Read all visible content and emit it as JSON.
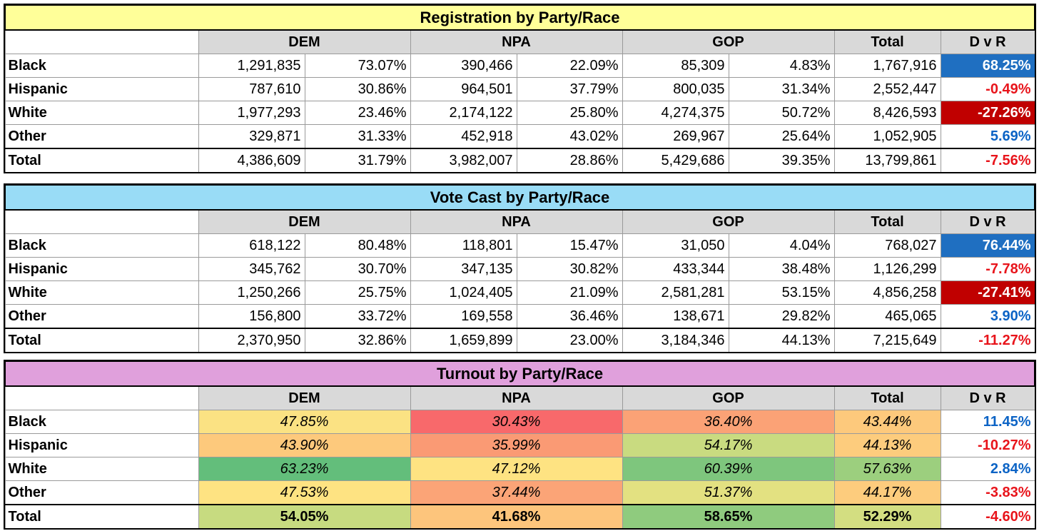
{
  "colors": {
    "reg_title_bg": "#ffff99",
    "vote_title_bg": "#99dcf6",
    "turn_title_bg": "#e0a0dc",
    "header_bg": "#d9d9d9",
    "positive_text": "#0b63c5",
    "negative_text": "#e8141b",
    "positive_fill": "#1f6fc1",
    "negative_fill": "#c00000"
  },
  "registration": {
    "title": "Registration by Party/Race",
    "headers": [
      "DEM",
      "NPA",
      "GOP",
      "Total",
      "D v R"
    ],
    "rows": [
      {
        "label": "Black",
        "dem": "1,291,835",
        "dem_pct": "73.07%",
        "npa": "390,466",
        "npa_pct": "22.09%",
        "gop": "85,309",
        "gop_pct": "4.83%",
        "total": "1,767,916",
        "dvr": "68.25%"
      },
      {
        "label": "Hispanic",
        "dem": "787,610",
        "dem_pct": "30.86%",
        "npa": "964,501",
        "npa_pct": "37.79%",
        "gop": "800,035",
        "gop_pct": "31.34%",
        "total": "2,552,447",
        "dvr": "-0.49%"
      },
      {
        "label": "White",
        "dem": "1,977,293",
        "dem_pct": "23.46%",
        "npa": "2,174,122",
        "npa_pct": "25.80%",
        "gop": "4,274,375",
        "gop_pct": "50.72%",
        "total": "8,426,593",
        "dvr": "-27.26%"
      },
      {
        "label": "Other",
        "dem": "329,871",
        "dem_pct": "31.33%",
        "npa": "452,918",
        "npa_pct": "43.02%",
        "gop": "269,967",
        "gop_pct": "25.64%",
        "total": "1,052,905",
        "dvr": "5.69%"
      },
      {
        "label": "Total",
        "dem": "4,386,609",
        "dem_pct": "31.79%",
        "npa": "3,982,007",
        "npa_pct": "28.86%",
        "gop": "5,429,686",
        "gop_pct": "39.35%",
        "total": "13,799,861",
        "dvr": "-7.56%"
      }
    ]
  },
  "vote_cast": {
    "title": "Vote Cast by Party/Race",
    "headers": [
      "DEM",
      "NPA",
      "GOP",
      "Total",
      "D v R"
    ],
    "rows": [
      {
        "label": "Black",
        "dem": "618,122",
        "dem_pct": "80.48%",
        "npa": "118,801",
        "npa_pct": "15.47%",
        "gop": "31,050",
        "gop_pct": "4.04%",
        "total": "768,027",
        "dvr": "76.44%"
      },
      {
        "label": "Hispanic",
        "dem": "345,762",
        "dem_pct": "30.70%",
        "npa": "347,135",
        "npa_pct": "30.82%",
        "gop": "433,344",
        "gop_pct": "38.48%",
        "total": "1,126,299",
        "dvr": "-7.78%"
      },
      {
        "label": "White",
        "dem": "1,250,266",
        "dem_pct": "25.75%",
        "npa": "1,024,405",
        "npa_pct": "21.09%",
        "gop": "2,581,281",
        "gop_pct": "53.15%",
        "total": "4,856,258",
        "dvr": "-27.41%"
      },
      {
        "label": "Other",
        "dem": "156,800",
        "dem_pct": "33.72%",
        "npa": "169,558",
        "npa_pct": "36.46%",
        "gop": "138,671",
        "gop_pct": "29.82%",
        "total": "465,065",
        "dvr": "3.90%"
      },
      {
        "label": "Total",
        "dem": "2,370,950",
        "dem_pct": "32.86%",
        "npa": "1,659,899",
        "npa_pct": "23.00%",
        "gop": "3,184,346",
        "gop_pct": "44.13%",
        "total": "7,215,649",
        "dvr": "-11.27%"
      }
    ]
  },
  "turnout": {
    "title": "Turnout by Party/Race",
    "headers": [
      "DEM",
      "NPA",
      "GOP",
      "Total",
      "D v R"
    ],
    "rows": [
      {
        "label": "Black",
        "dem": "47.85%",
        "npa": "30.43%",
        "gop": "36.40%",
        "total": "43.44%",
        "dvr": "11.45%",
        "dem_bg": "#fbe283",
        "npa_bg": "#f8696b",
        "gop_bg": "#fba276",
        "total_bg": "#fdc97c"
      },
      {
        "label": "Hispanic",
        "dem": "43.90%",
        "npa": "35.99%",
        "gop": "54.17%",
        "total": "44.13%",
        "dvr": "-10.27%",
        "dem_bg": "#fdc97c",
        "npa_bg": "#fa9a74",
        "gop_bg": "#c9db80",
        "total_bg": "#fdcc7d"
      },
      {
        "label": "White",
        "dem": "63.23%",
        "npa": "47.12%",
        "gop": "60.39%",
        "total": "57.63%",
        "dvr": "2.84%",
        "dem_bg": "#63be7b",
        "npa_bg": "#fee382",
        "gop_bg": "#7ec67d",
        "total_bg": "#9ccf7e"
      },
      {
        "label": "Other",
        "dem": "47.53%",
        "npa": "37.44%",
        "gop": "51.37%",
        "total": "44.17%",
        "dvr": "-3.83%",
        "dem_bg": "#fee382",
        "npa_bg": "#fba477",
        "gop_bg": "#e3e181",
        "total_bg": "#fdcc7d"
      },
      {
        "label": "Total",
        "dem": "54.05%",
        "npa": "41.68%",
        "gop": "58.65%",
        "total": "52.29%",
        "dvr": "-4.60%",
        "dem_bg": "#c7db80",
        "npa_bg": "#fdc57c",
        "gop_bg": "#8fcb7e",
        "total_bg": "#d3de81"
      }
    ]
  }
}
